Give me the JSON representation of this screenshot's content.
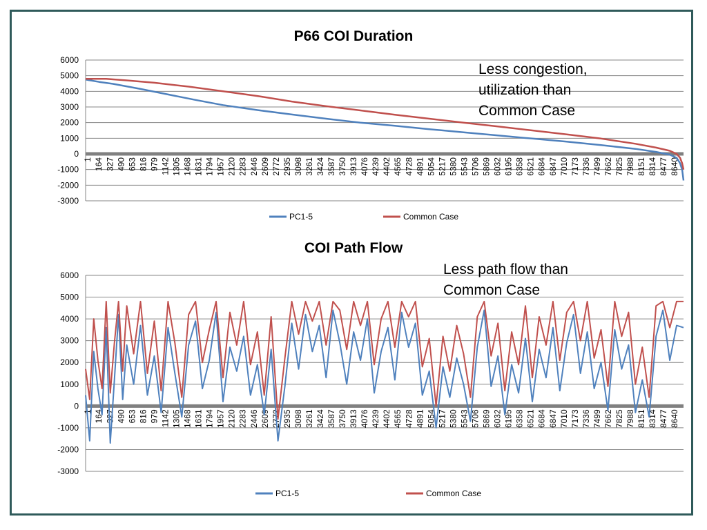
{
  "colors": {
    "series1": "#4f81bd",
    "series2": "#c0504d",
    "frame": "#2f5a5a",
    "zero_line": "#808080",
    "grid": "#868686"
  },
  "chart_data": [
    {
      "type": "line",
      "title": "P66 COI Duration",
      "ylim": [
        -3000,
        6000
      ],
      "y_ticks": [
        "6000",
        "5000",
        "4000",
        "3000",
        "2000",
        "1000",
        "0",
        "-1000",
        "-2000",
        "-3000"
      ],
      "x_ticks": [
        "1",
        "164",
        "327",
        "490",
        "653",
        "816",
        "979",
        "1142",
        "1305",
        "1468",
        "1631",
        "1794",
        "1957",
        "2120",
        "2283",
        "2446",
        "2609",
        "2772",
        "2935",
        "3098",
        "3261",
        "3424",
        "3587",
        "3750",
        "3913",
        "4076",
        "4239",
        "4402",
        "4565",
        "4728",
        "4891",
        "5054",
        "5217",
        "5380",
        "5543",
        "5706",
        "5869",
        "6032",
        "6195",
        "6358",
        "6521",
        "6684",
        "6847",
        "7010",
        "7173",
        "7336",
        "7499",
        "7662",
        "7825",
        "7988",
        "8151",
        "8314",
        "8477",
        "8640"
      ],
      "x_range": [
        1,
        8700
      ],
      "grid": true,
      "legend": "bottom",
      "series": [
        {
          "name": "PC1-5",
          "x": [
            1,
            200,
            400,
            800,
            1200,
            1600,
            2000,
            2500,
            3000,
            3500,
            4000,
            4500,
            5000,
            5500,
            6000,
            6500,
            7000,
            7500,
            8000,
            8300,
            8500,
            8600,
            8650,
            8680,
            8700
          ],
          "y": [
            4750,
            4600,
            4480,
            4150,
            3800,
            3450,
            3120,
            2800,
            2520,
            2250,
            2000,
            1800,
            1580,
            1380,
            1180,
            980,
            780,
            560,
            320,
            130,
            -50,
            -250,
            -600,
            -1000,
            -1700
          ]
        },
        {
          "name": "Common Case",
          "x": [
            1,
            300,
            600,
            1000,
            1500,
            2000,
            2500,
            3000,
            3500,
            4000,
            4500,
            5000,
            5500,
            6000,
            6500,
            7000,
            7500,
            8000,
            8300,
            8500,
            8600,
            8650,
            8680,
            8700
          ],
          "y": [
            4800,
            4800,
            4700,
            4550,
            4300,
            4000,
            3700,
            3350,
            3050,
            2780,
            2500,
            2250,
            2000,
            1750,
            1500,
            1250,
            980,
            650,
            400,
            200,
            0,
            -250,
            -600,
            -1000
          ]
        }
      ],
      "annotation": [
        "Less congestion,",
        "utilization than",
        "Common Case"
      ]
    },
    {
      "type": "line",
      "title": "COI Path Flow",
      "ylim": [
        -3000,
        6000
      ],
      "y_ticks": [
        "6000",
        "5000",
        "4000",
        "3000",
        "2000",
        "1000",
        "0",
        "-1000",
        "-2000",
        "-3000"
      ],
      "x_ticks": [
        "1",
        "164",
        "327",
        "490",
        "653",
        "816",
        "979",
        "1142",
        "1305",
        "1468",
        "1631",
        "1794",
        "1957",
        "2120",
        "2283",
        "2446",
        "2609",
        "2772",
        "2935",
        "3098",
        "3261",
        "3424",
        "3587",
        "3750",
        "3913",
        "4076",
        "4239",
        "4402",
        "4565",
        "4728",
        "4891",
        "5054",
        "5217",
        "5380",
        "5543",
        "5706",
        "5869",
        "6032",
        "6195",
        "6358",
        "6521",
        "6684",
        "6847",
        "7010",
        "7173",
        "7336",
        "7499",
        "7662",
        "7825",
        "7988",
        "8151",
        "8314",
        "8477",
        "8640"
      ],
      "x_range": [
        1,
        8700
      ],
      "grid": true,
      "legend": "bottom",
      "series": [
        {
          "name": "PC1-5",
          "x": [
            1,
            60,
            120,
            180,
            240,
            300,
            360,
            420,
            480,
            540,
            600,
            700,
            800,
            900,
            1000,
            1100,
            1200,
            1300,
            1400,
            1500,
            1600,
            1700,
            1800,
            1900,
            2000,
            2100,
            2200,
            2300,
            2400,
            2500,
            2600,
            2700,
            2800,
            2900,
            3000,
            3100,
            3200,
            3300,
            3400,
            3500,
            3600,
            3700,
            3800,
            3900,
            4000,
            4100,
            4200,
            4300,
            4400,
            4500,
            4600,
            4700,
            4800,
            4900,
            5000,
            5100,
            5200,
            5300,
            5400,
            5500,
            5600,
            5700,
            5800,
            5900,
            6000,
            6100,
            6200,
            6300,
            6400,
            6500,
            6600,
            6700,
            6800,
            6900,
            7000,
            7100,
            7200,
            7300,
            7400,
            7500,
            7600,
            7700,
            7800,
            7900,
            8000,
            8100,
            8200,
            8300,
            8400,
            8500,
            8600,
            8700
          ],
          "y": [
            500,
            -1600,
            2500,
            800,
            -400,
            3600,
            -1700,
            1200,
            4200,
            300,
            2800,
            1000,
            3700,
            500,
            2300,
            -300,
            3600,
            1500,
            -500,
            2800,
            3900,
            800,
            2100,
            4300,
            200,
            2700,
            1600,
            3200,
            500,
            1900,
            -400,
            2600,
            -1600,
            900,
            3800,
            1700,
            4200,
            2500,
            3700,
            1300,
            4400,
            2900,
            1000,
            3400,
            2100,
            4000,
            600,
            2500,
            3600,
            1200,
            4300,
            2700,
            3800,
            500,
            1600,
            -1000,
            1800,
            400,
            2200,
            1000,
            -700,
            2700,
            4400,
            900,
            2300,
            -400,
            1900,
            600,
            3100,
            200,
            2600,
            1300,
            3600,
            700,
            2900,
            4200,
            1500,
            3400,
            800,
            2000,
            -200,
            3500,
            1700,
            2800,
            -300,
            1200,
            -500,
            3200,
            4400,
            2100,
            3700,
            3600
          ]
        },
        {
          "name": "Common Case",
          "x": [
            1,
            60,
            120,
            180,
            240,
            300,
            360,
            420,
            480,
            540,
            600,
            700,
            800,
            900,
            1000,
            1100,
            1200,
            1300,
            1400,
            1500,
            1600,
            1700,
            1800,
            1900,
            2000,
            2100,
            2200,
            2300,
            2400,
            2500,
            2600,
            2700,
            2800,
            2900,
            3000,
            3100,
            3200,
            3300,
            3400,
            3500,
            3600,
            3700,
            3800,
            3900,
            4000,
            4100,
            4200,
            4300,
            4400,
            4500,
            4600,
            4700,
            4800,
            4900,
            5000,
            5100,
            5200,
            5300,
            5400,
            5500,
            5600,
            5700,
            5800,
            5900,
            6000,
            6100,
            6200,
            6300,
            6400,
            6500,
            6600,
            6700,
            6800,
            6900,
            7000,
            7100,
            7200,
            7300,
            7400,
            7500,
            7600,
            7700,
            7800,
            7900,
            8000,
            8100,
            8200,
            8300,
            8400,
            8500,
            8600,
            8700
          ],
          "y": [
            1700,
            300,
            4000,
            2100,
            800,
            4800,
            600,
            2900,
            4800,
            1600,
            4600,
            2400,
            4800,
            1500,
            3900,
            700,
            4800,
            2900,
            400,
            4200,
            4800,
            2000,
            3500,
            4800,
            1300,
            4300,
            2800,
            4800,
            1900,
            3400,
            500,
            4100,
            -600,
            2200,
            4800,
            3300,
            4800,
            3900,
            4800,
            2800,
            4800,
            4400,
            2600,
            4800,
            3700,
            4800,
            1900,
            4000,
            4800,
            2700,
            4800,
            4100,
            4800,
            1800,
            3100,
            0,
            3200,
            1600,
            3700,
            2400,
            400,
            4100,
            4800,
            2300,
            3800,
            700,
            3400,
            1900,
            4600,
            1300,
            4100,
            2800,
            4800,
            2100,
            4300,
            4800,
            3000,
            4800,
            2200,
            3500,
            900,
            4800,
            3200,
            4300,
            1000,
            2700,
            400,
            4600,
            4800,
            3600,
            4800,
            4800
          ]
        }
      ],
      "annotation": [
        "Less path flow than",
        "Common Case"
      ]
    }
  ]
}
